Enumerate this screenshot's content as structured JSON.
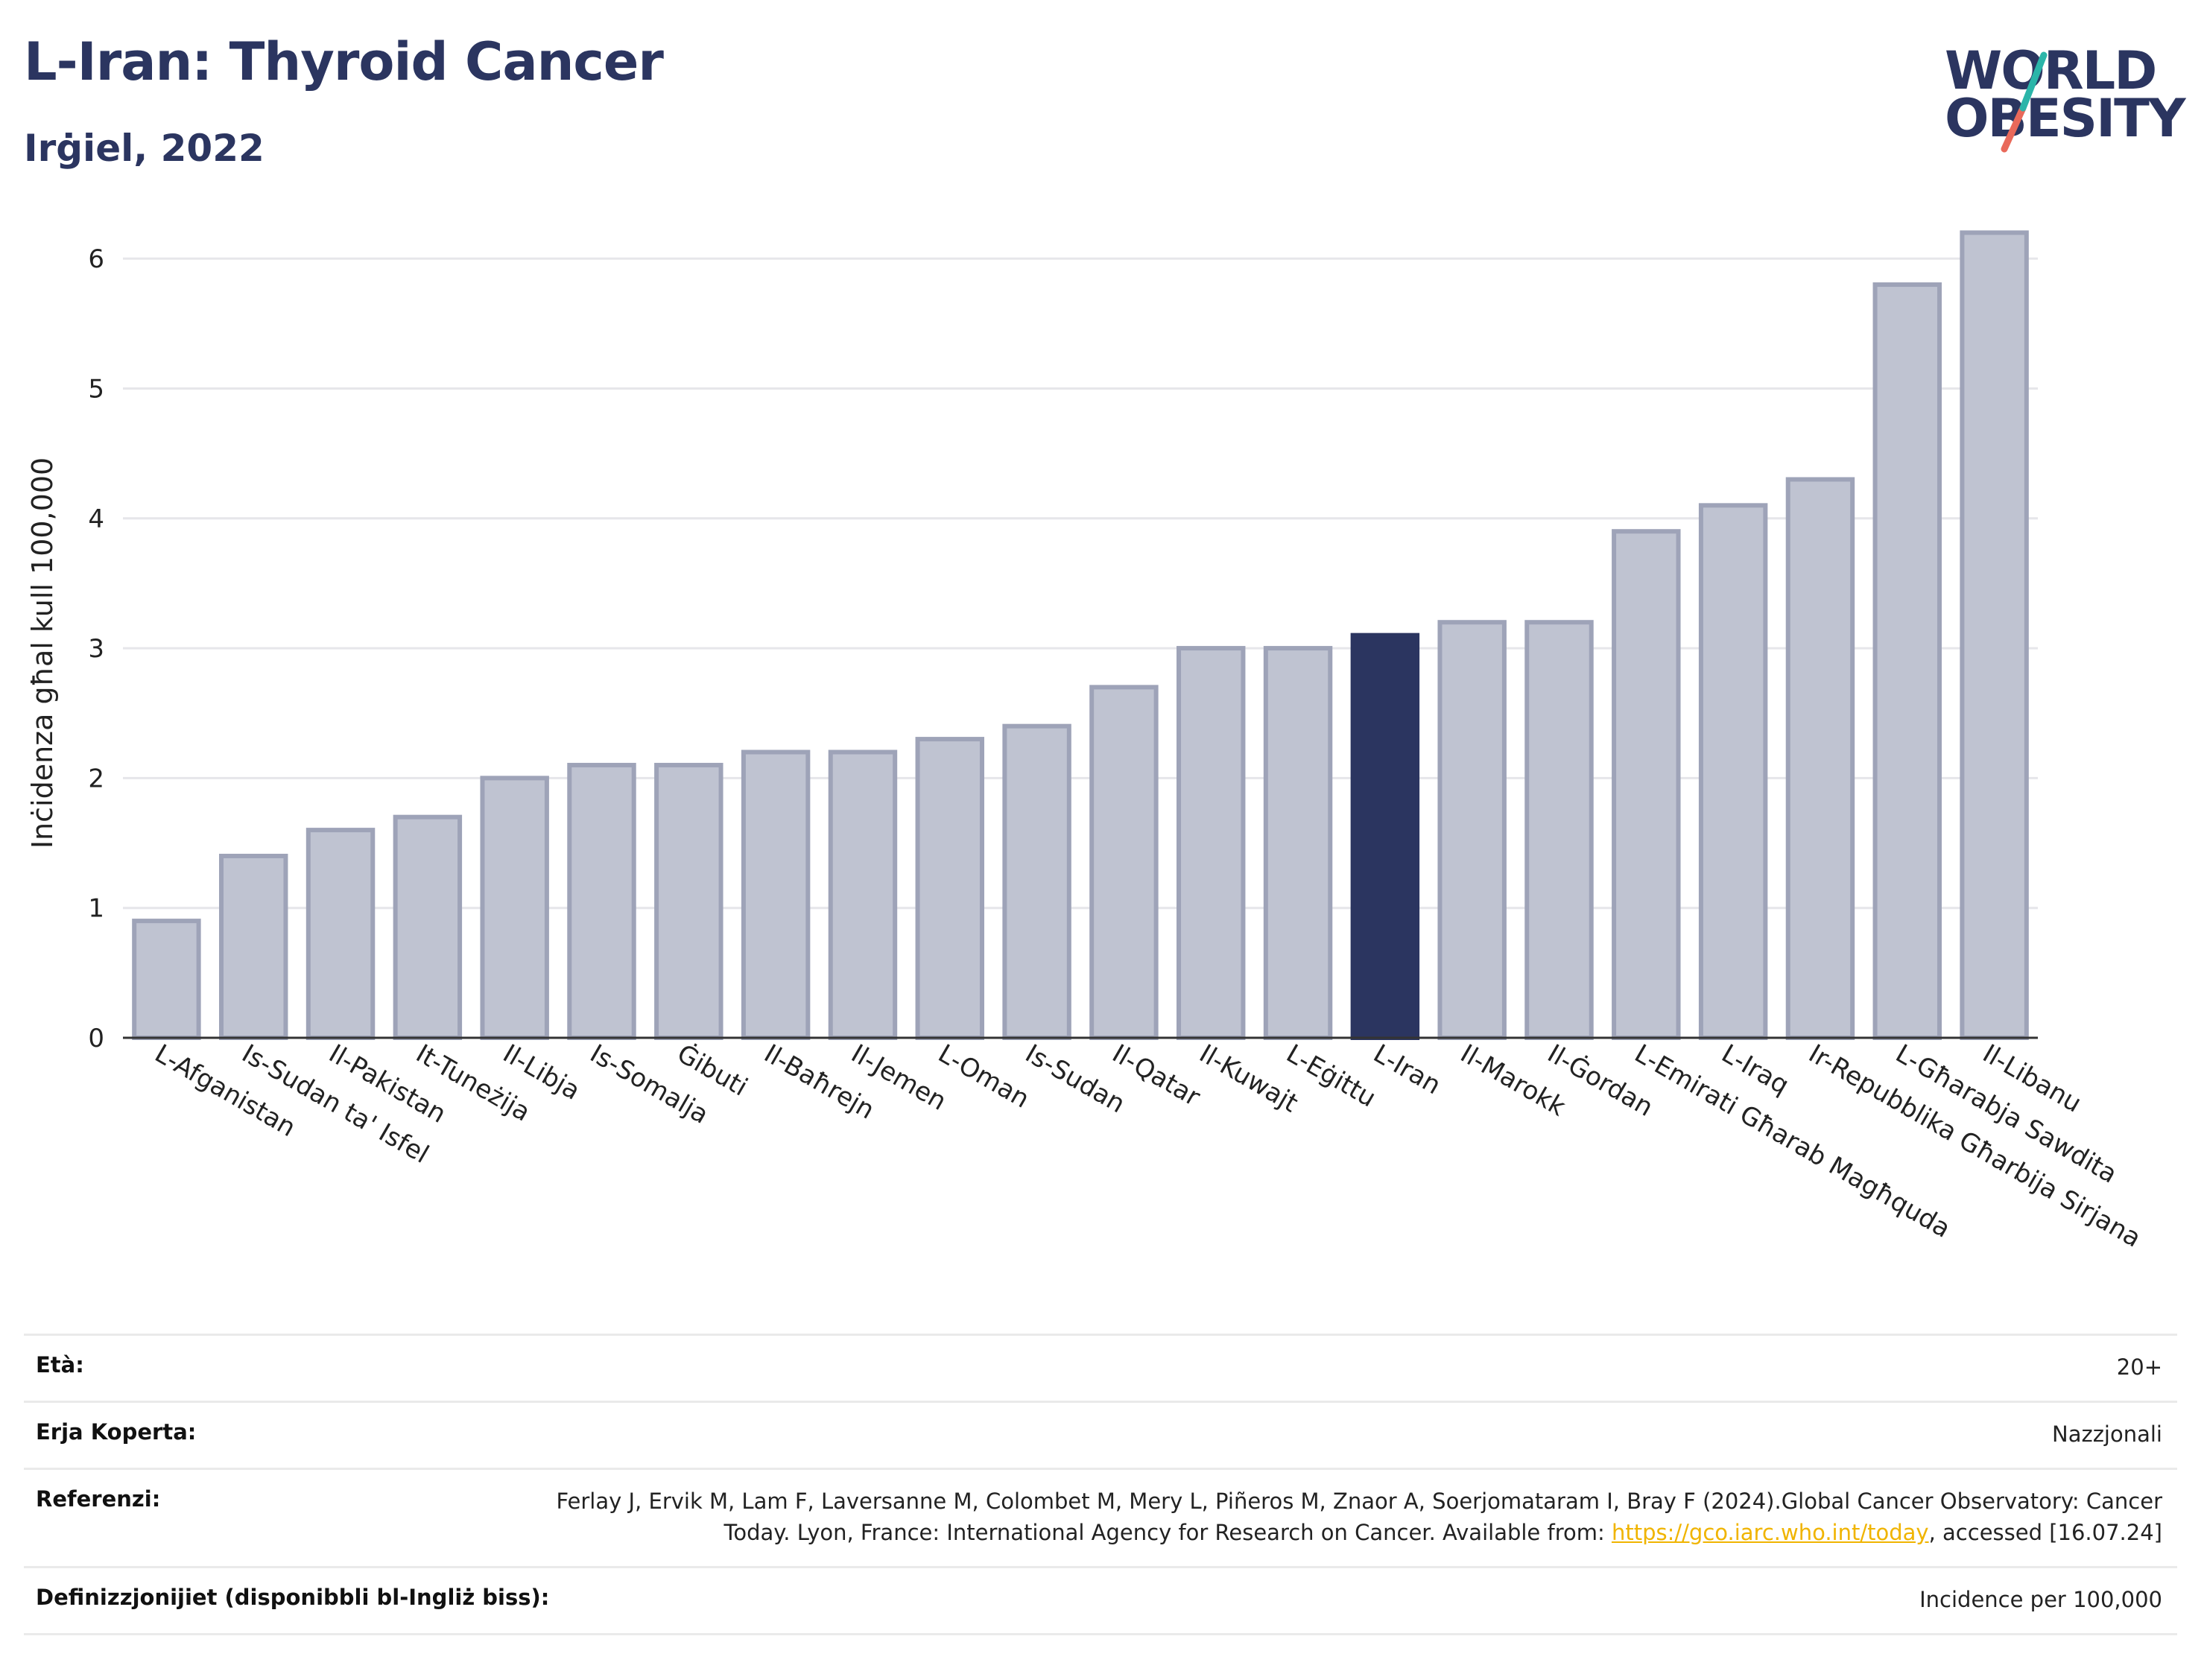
{
  "header": {
    "title": "L-Iran: Thyroid Cancer",
    "subtitle": "Irġiel, 2022"
  },
  "logo": {
    "line1": "WORLD",
    "line2": "OBESITY",
    "colors": {
      "text": "#2b3560",
      "slash_top": "#2bb5a9",
      "slash_bottom": "#e9695a"
    }
  },
  "colors": {
    "bar": "#2b3560",
    "bar_other_fill": "#bfc3d1",
    "bar_other_stroke": "#9ea3b8",
    "highlight": "#2b3560",
    "grid": "#e6e6ea"
  },
  "chart_data": {
    "type": "bar",
    "ylabel": "Inċidenza għal kull 100,000",
    "xlabel": "",
    "ylim": [
      0,
      6.5
    ],
    "yticks": [
      0,
      1,
      2,
      3,
      4,
      5,
      6
    ],
    "grid": true,
    "highlight": "L-Iran",
    "categories": [
      "L-Afganistan",
      "Is-Sudan ta' Isfel",
      "Il-Pakistan",
      "It-Tuneżija",
      "Il-Libja",
      "Is-Somalja",
      "Ġibuti",
      "Il-Baħrejn",
      "Il-Jemen",
      "L-Oman",
      "Is-Sudan",
      "Il-Qatar",
      "Il-Kuwajt",
      "L-Eġittu",
      "L-Iran",
      "Il-Marokk",
      "Il-Ġordan",
      "L-Emirati Għarab Magħquda",
      "L-Iraq",
      "Ir-Repubblika Għarbija Sirjana",
      "L-Għarabja Sawdita",
      "Il-Libanu"
    ],
    "values": [
      0.9,
      1.4,
      1.6,
      1.7,
      2.0,
      2.1,
      2.1,
      2.2,
      2.2,
      2.3,
      2.4,
      2.7,
      3.0,
      3.0,
      3.1,
      3.2,
      3.2,
      3.9,
      4.1,
      4.3,
      5.8,
      6.2
    ]
  },
  "meta": [
    {
      "label": "Età:",
      "value": "20+"
    },
    {
      "label": "Erja Koperta:",
      "value": "Nazzjonali"
    },
    {
      "label": "Referenzi:",
      "value_pre": "Ferlay J, Ervik M, Lam F, Laversanne M, Colombet M, Mery L, Piñeros M, Znaor A, Soerjomataram I, Bray F (2024).Global Cancer Observatory: Cancer Today. Lyon, France: International Agency for Research on Cancer. Available from: ",
      "link": "https://gco.iarc.who.int/today",
      "value_post": ", accessed [16.07.24]"
    },
    {
      "label": "Definizzjonijiet (disponibbli bl-Ingliż biss):",
      "value": "Incidence per 100,000"
    }
  ]
}
